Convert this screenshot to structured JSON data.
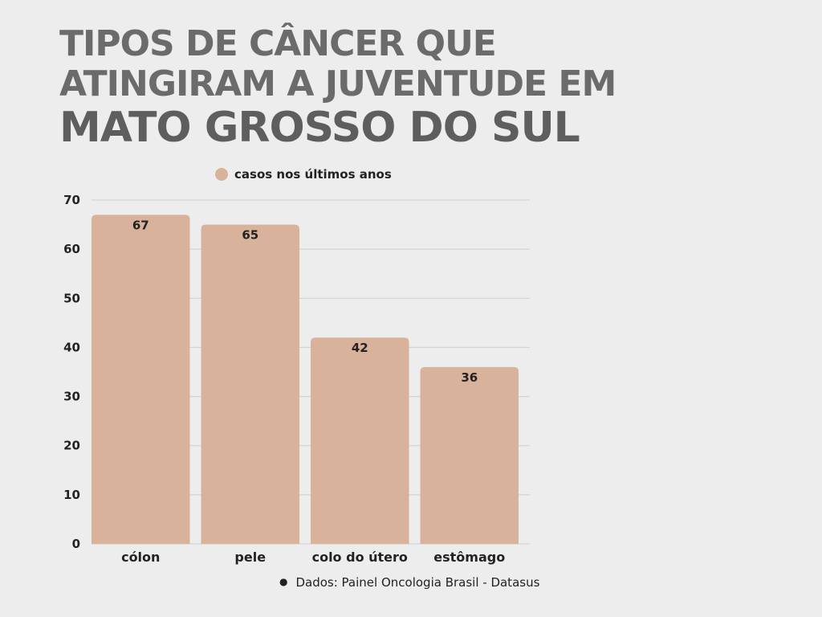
{
  "title": {
    "line1": "Tipos de câncer que",
    "line2": "atingiram a juventude em",
    "line3": "Mato Grosso do Sul"
  },
  "source": "Dados: Painel Oncologia Brasil - Datasus",
  "colors": {
    "bar": "#d8b29a",
    "grid": "#cfcfcf",
    "title": "#6b6b6b",
    "text": "#222222"
  },
  "chart_data": {
    "type": "bar",
    "categories": [
      "cólon",
      "pele",
      "colo do útero",
      "estômago"
    ],
    "series": [
      {
        "name": "casos nos últimos anos",
        "values": [
          67,
          65,
          42,
          36
        ]
      }
    ],
    "ylim": [
      0,
      70
    ],
    "yticks": [
      0,
      10,
      20,
      30,
      40,
      50,
      60,
      70
    ],
    "grid": true,
    "legend_position": "top",
    "data_labels": true
  }
}
